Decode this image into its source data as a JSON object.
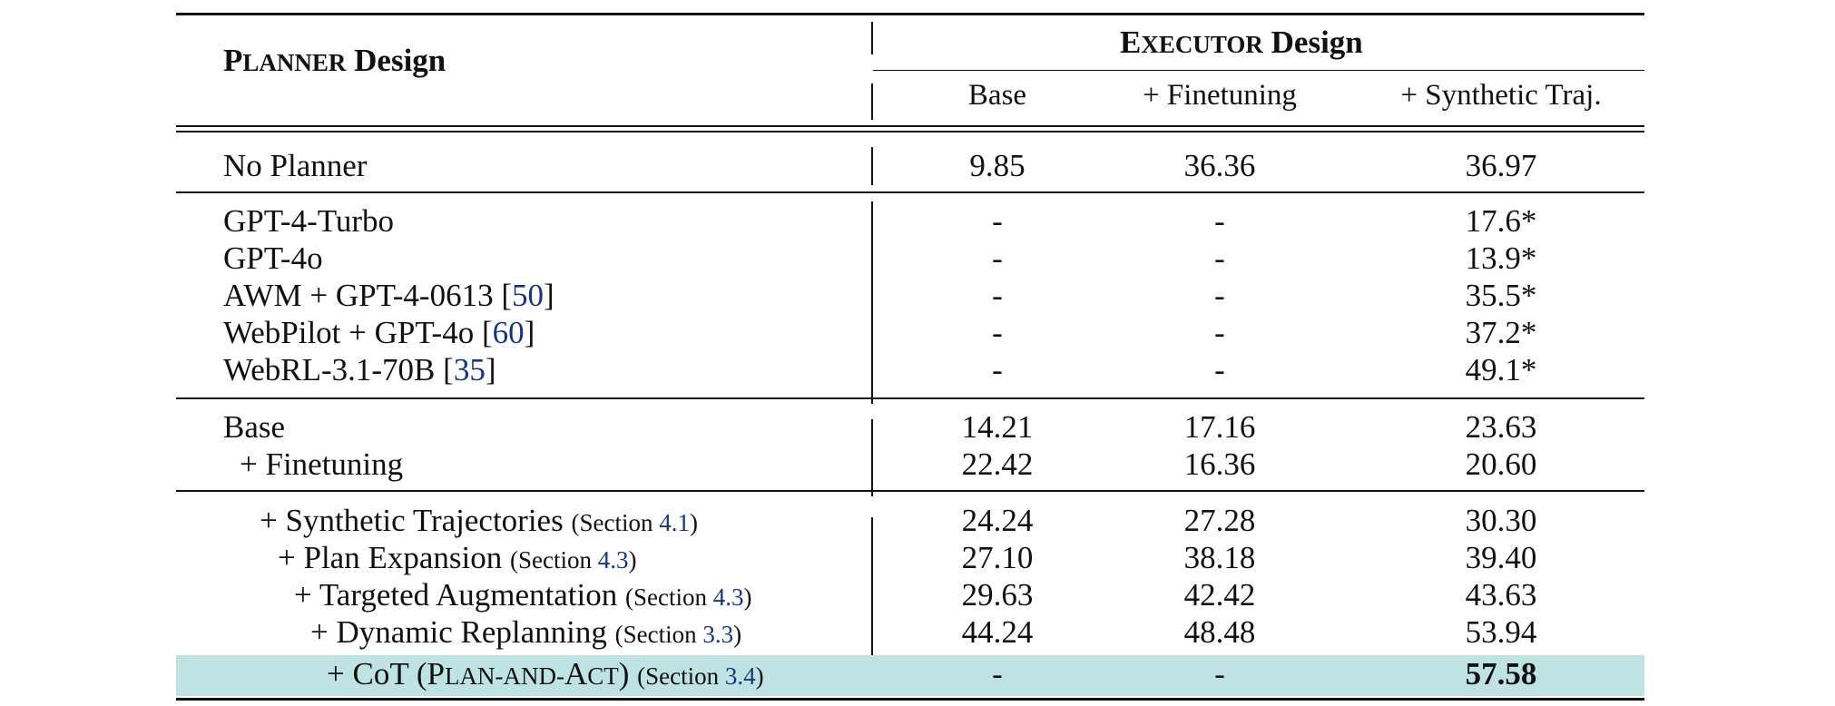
{
  "table": {
    "planner_design_label": {
      "initial": "P",
      "smallcaps": "LANNER",
      "rest": " Design"
    },
    "executor_design_label": {
      "initial": "E",
      "smallcaps": "XECUTOR",
      "rest": " Design"
    },
    "executor_columns": [
      "Base",
      "+ Finetuning",
      "+ Synthetic Traj."
    ],
    "rows": [
      {
        "label": "No Planner",
        "values": [
          "9.85",
          "36.36",
          "36.97"
        ]
      },
      {
        "label": "GPT-4-Turbo",
        "values": [
          "-",
          "-",
          "17.6*"
        ]
      },
      {
        "label": "GPT-4o",
        "values": [
          "-",
          "-",
          "13.9*"
        ]
      },
      {
        "label_prefix": "AWM + GPT-4-0613 [",
        "cite": "50",
        "label_suffix": "]",
        "values": [
          "-",
          "-",
          "35.5*"
        ]
      },
      {
        "label_prefix": "WebPilot + GPT-4o [",
        "cite": "60",
        "label_suffix": "]",
        "values": [
          "-",
          "-",
          "37.2*"
        ]
      },
      {
        "label_prefix": "WebRL-3.1-70B [",
        "cite": "35",
        "label_suffix": "]",
        "values": [
          "-",
          "-",
          "49.1*"
        ]
      },
      {
        "label": "Base",
        "values": [
          "14.21",
          "17.16",
          "23.63"
        ]
      },
      {
        "label": "+ Finetuning",
        "values": [
          "22.42",
          "16.36",
          "20.60"
        ]
      },
      {
        "label": "+ Synthetic Trajectories",
        "section_prefix": "(Section ",
        "section": "4.1",
        "section_suffix": ")",
        "values": [
          "24.24",
          "27.28",
          "30.30"
        ]
      },
      {
        "label": "+ Plan Expansion",
        "section_prefix": "(Section ",
        "section": "4.3",
        "section_suffix": ")",
        "values": [
          "27.10",
          "38.18",
          "39.40"
        ]
      },
      {
        "label": "+ Targeted Augmentation",
        "section_prefix": "(Section ",
        "section": "4.3",
        "section_suffix": ")",
        "values": [
          "29.63",
          "42.42",
          "43.63"
        ]
      },
      {
        "label": "+ Dynamic Replanning",
        "section_prefix": "(Section ",
        "section": "3.3",
        "section_suffix": ")",
        "values": [
          "44.24",
          "48.48",
          "53.94"
        ]
      },
      {
        "label_prefix": "+ CoT (",
        "smallcaps_initial": "P",
        "smallcaps_rest": "LAN-AND-",
        "smallcaps_initial_2": "A",
        "smallcaps_rest_2": "CT",
        "label_suffix": ") ",
        "section_prefix": "(Section ",
        "section": "3.4",
        "section_suffix": ")",
        "values": [
          "-",
          "-",
          "57.58"
        ]
      }
    ],
    "highlight_color": "#bfe2e2",
    "citation_color": "#15367f"
  }
}
